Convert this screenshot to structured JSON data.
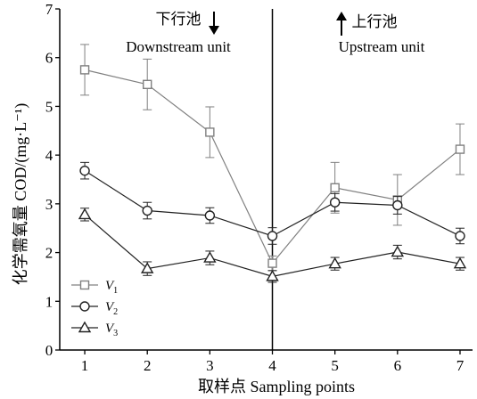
{
  "chart_data": {
    "type": "line",
    "xlabel": "取样点 Sampling points",
    "ylabel": "化学需氧量 COD/(mg·L⁻¹)",
    "xlim": [
      0.6,
      7.2
    ],
    "ylim": [
      0,
      7
    ],
    "xticks": [
      1,
      2,
      3,
      4,
      5,
      6,
      7
    ],
    "yticks": [
      0,
      1,
      2,
      3,
      4,
      5,
      6,
      7
    ],
    "grid": false,
    "legend_position": "bottom-left",
    "divider_x": 4,
    "annotations": {
      "left_cn": "下行池",
      "left_en": "Downstream unit",
      "right_cn": "上行池",
      "right_en": "Upstream unit"
    },
    "x": [
      1,
      2,
      3,
      4,
      5,
      6,
      7
    ],
    "series": [
      {
        "name": "V",
        "subscript": "1",
        "marker": "square",
        "color": "#808080",
        "values": [
          5.75,
          5.45,
          4.47,
          1.78,
          3.33,
          3.08,
          4.12
        ],
        "errors": [
          0.52,
          0.52,
          0.52,
          0.15,
          0.52,
          0.52,
          0.52
        ]
      },
      {
        "name": "V",
        "subscript": "2",
        "marker": "circle",
        "color": "#222222",
        "values": [
          3.68,
          2.86,
          2.76,
          2.34,
          3.03,
          2.97,
          2.34
        ],
        "errors": [
          0.17,
          0.17,
          0.16,
          0.17,
          0.18,
          0.18,
          0.16
        ]
      },
      {
        "name": "V",
        "subscript": "3",
        "marker": "triangle",
        "color": "#222222",
        "values": [
          2.78,
          1.67,
          1.89,
          1.51,
          1.77,
          2.01,
          1.77
        ],
        "errors": [
          0.13,
          0.14,
          0.14,
          0.12,
          0.13,
          0.14,
          0.13
        ]
      }
    ]
  }
}
